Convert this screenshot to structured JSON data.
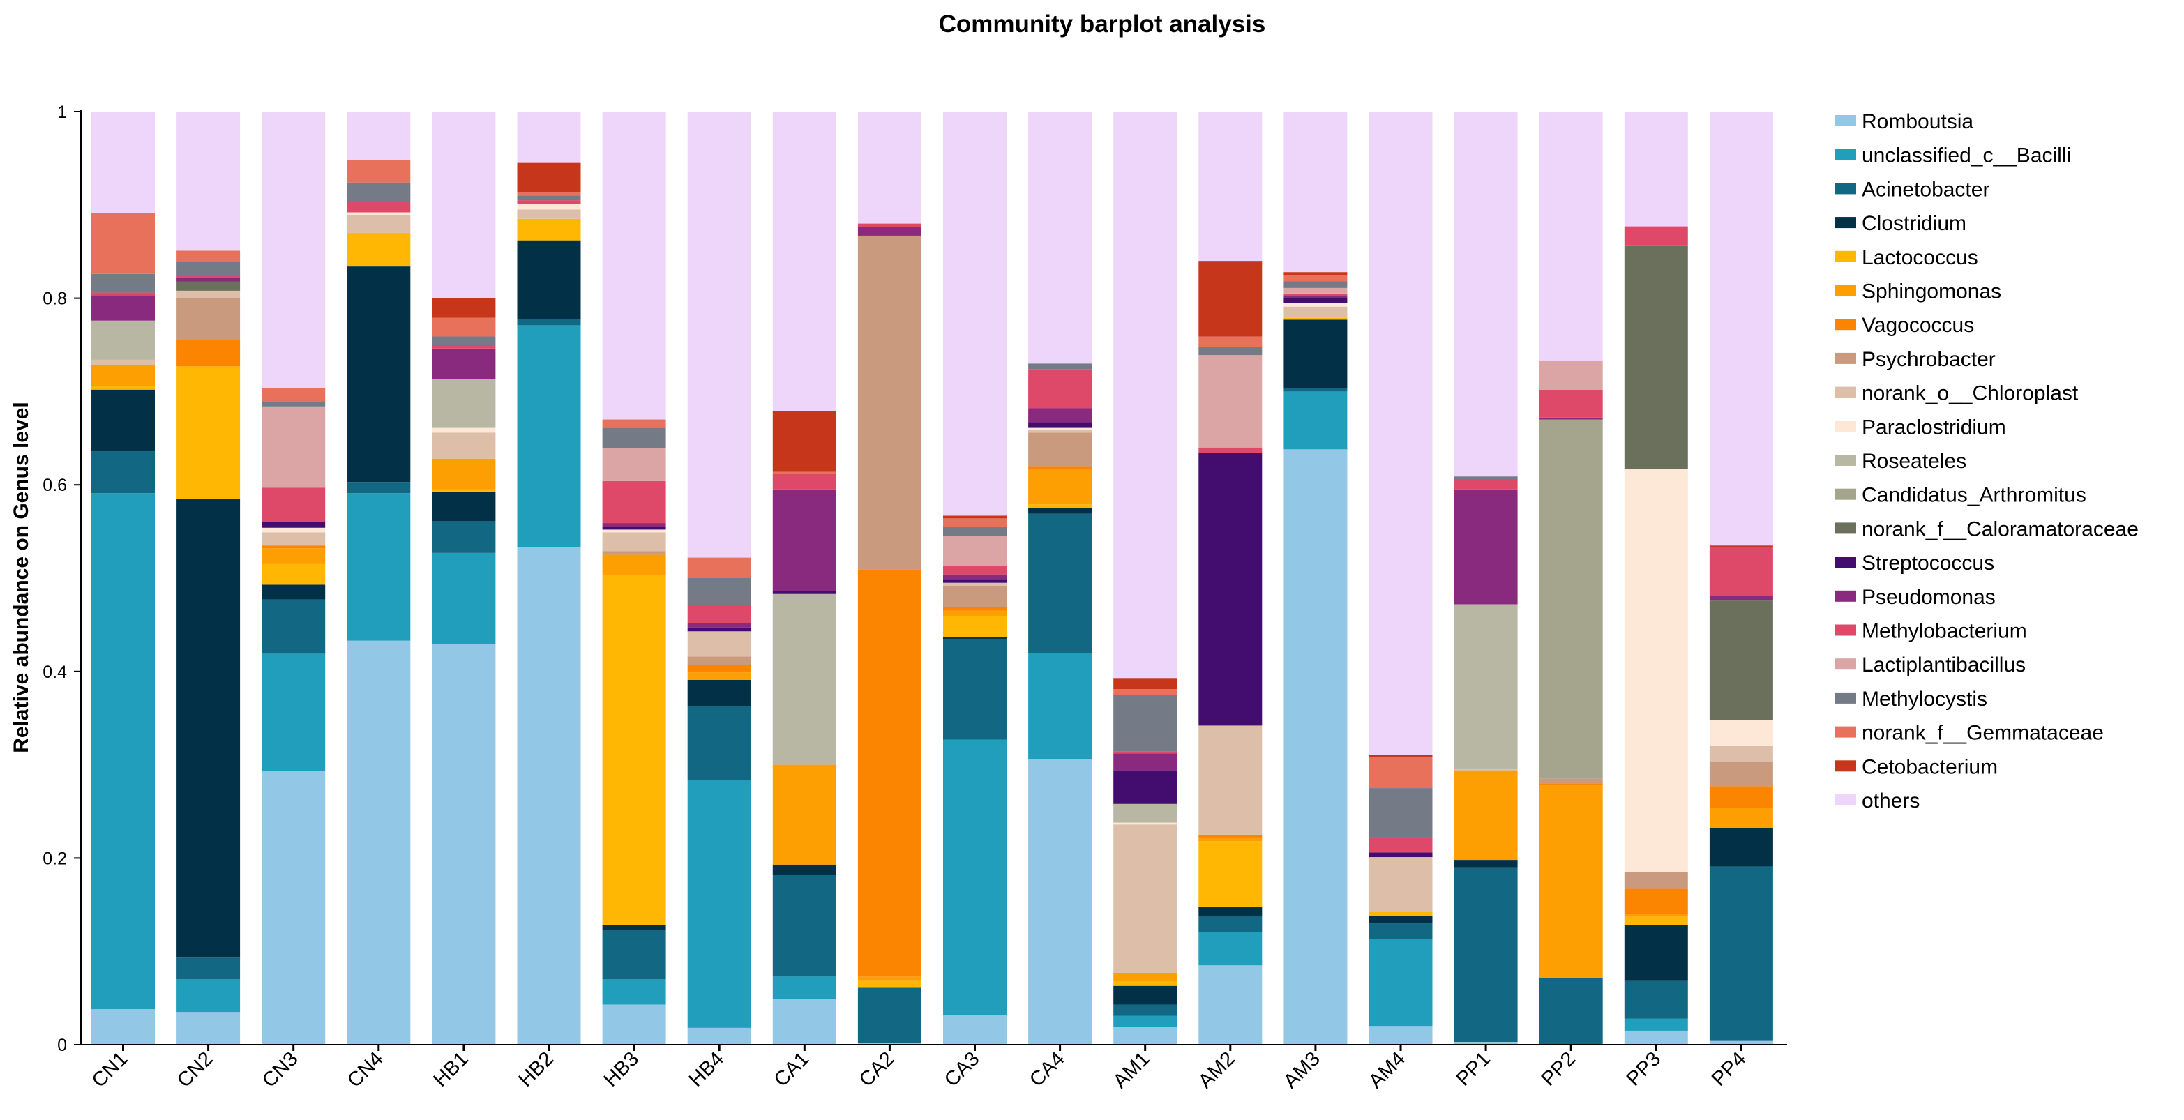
{
  "chart_data": {
    "type": "bar",
    "stacked": true,
    "title": "Community barplot analysis",
    "xlabel": "",
    "ylabel": "Relative abundance on Genus level",
    "ylim": [
      0,
      1
    ],
    "yticks": [
      "0",
      "0.2",
      "0.4",
      "0.6",
      "0.8",
      "1"
    ],
    "legend_position": "right",
    "categories": [
      "CN1",
      "CN2",
      "CN3",
      "CN4",
      "HB1",
      "HB2",
      "HB3",
      "HB4",
      "CA1",
      "CA2",
      "CA3",
      "CA4",
      "AM1",
      "AM2",
      "AM3",
      "AM4",
      "PP1",
      "PP2",
      "PP3",
      "PP4"
    ],
    "series": [
      {
        "name": "Romboutsia",
        "color": "#92C8E6"
      },
      {
        "name": "unclassified_c__Bacilli",
        "color": "#219EBC"
      },
      {
        "name": "Acinetobacter",
        "color": "#126782"
      },
      {
        "name": "Clostridium",
        "color": "#023047"
      },
      {
        "name": "Lactococcus",
        "color": "#FFB703"
      },
      {
        "name": "Sphingomonas",
        "color": "#FD9E02"
      },
      {
        "name": "Vagococcus",
        "color": "#FB8500"
      },
      {
        "name": "Psychrobacter",
        "color": "#CA9A7F"
      },
      {
        "name": "norank_o__Chloroplast",
        "color": "#DDBEA9"
      },
      {
        "name": "Paraclostridium",
        "color": "#FDE8D7"
      },
      {
        "name": "Roseateles",
        "color": "#B7B7A4"
      },
      {
        "name": "Candidatus_Arthromitus",
        "color": "#A5A58D"
      },
      {
        "name": "norank_f__Caloramatoraceae",
        "color": "#6B705C"
      },
      {
        "name": "Streptococcus",
        "color": "#420D6F"
      },
      {
        "name": "Pseudomonas",
        "color": "#8A2A7F"
      },
      {
        "name": "Methylobacterium",
        "color": "#DF4969"
      },
      {
        "name": "Lactiplantibacillus",
        "color": "#DBA5A5"
      },
      {
        "name": "Methylocystis",
        "color": "#757A87"
      },
      {
        "name": "norank_f__Gemmataceae",
        "color": "#E7715B"
      },
      {
        "name": "Cetobacterium",
        "color": "#C6361A"
      },
      {
        "name": "others",
        "color": "#EED6FB"
      }
    ],
    "values_by_category_in_series_order": {
      "CN1": [
        0.038,
        0.553,
        0.045,
        0.066,
        0.004,
        0.022,
        0,
        0,
        0.006,
        0,
        0.042,
        0,
        0,
        0,
        0.027,
        0.003,
        0,
        0.02,
        0.065,
        0,
        0.109
      ],
      "CN2": [
        0.035,
        0.035,
        0.024,
        0.491,
        0.142,
        0,
        0.028,
        0.045,
        0.008,
        0,
        0,
        0,
        0.01,
        0,
        0.004,
        0.003,
        0,
        0.014,
        0.012,
        0,
        0.149
      ],
      "CN3": [
        0.293,
        0.126,
        0.058,
        0.016,
        0.022,
        0.017,
        0.003,
        0,
        0.014,
        0.005,
        0,
        0,
        0,
        0.006,
        0,
        0.037,
        0.087,
        0.005,
        0.015,
        0,
        0.296
      ],
      "CN4": [
        0.433,
        0.158,
        0.012,
        0.231,
        0.036,
        0,
        0,
        0,
        0.019,
        0.003,
        0,
        0,
        0,
        0,
        0,
        0.011,
        0,
        0.021,
        0.024,
        0,
        0.052
      ],
      "HB1": [
        0.429,
        0.098,
        0.034,
        0.031,
        0.003,
        0.033,
        0,
        0,
        0.028,
        0.005,
        0.052,
        0,
        0,
        0,
        0.033,
        0.004,
        0,
        0.009,
        0.02,
        0.021,
        0.2
      ],
      "HB2": [
        0.533,
        0.238,
        0.007,
        0.084,
        0.023,
        0,
        0,
        0,
        0.01,
        0.006,
        0,
        0,
        0,
        0,
        0,
        0.004,
        0,
        0.005,
        0.004,
        0.031,
        0.055
      ],
      "HB3": [
        0.043,
        0.027,
        0.053,
        0.005,
        0.375,
        0.022,
        0,
        0.004,
        0.02,
        0.003,
        0,
        0,
        0,
        0.003,
        0.004,
        0.045,
        0.035,
        0.022,
        0.009,
        0,
        0.33
      ],
      "HB4": [
        0.018,
        0.266,
        0.079,
        0.028,
        0,
        0.008,
        0.008,
        0.009,
        0.027,
        0,
        0,
        0,
        0,
        0.004,
        0.005,
        0.019,
        0,
        0.029,
        0.022,
        0,
        0.478
      ],
      "CA1": [
        0.049,
        0.024,
        0.109,
        0.011,
        0,
        0.107,
        0,
        0,
        0,
        0,
        0.183,
        0,
        0,
        0.003,
        0.109,
        0.017,
        0,
        0,
        0.002,
        0.065,
        0.321
      ],
      "CA2": [
        0.002,
        0,
        0.059,
        0,
        0.008,
        0.004,
        0.436,
        0.358,
        0,
        0,
        0,
        0,
        0,
        0,
        0.009,
        0.004,
        0,
        0,
        0,
        0,
        0.12
      ],
      "CA3": [
        0.032,
        0.295,
        0.108,
        0.002,
        0.022,
        0.006,
        0.004,
        0.023,
        0.003,
        0,
        0,
        0,
        0,
        0.004,
        0.005,
        0.009,
        0.032,
        0.01,
        0.009,
        0.003,
        0.433
      ],
      "CA4": [
        0.306,
        0.114,
        0.149,
        0.006,
        0.004,
        0.037,
        0.004,
        0.036,
        0.003,
        0.002,
        0,
        0,
        0,
        0.006,
        0.015,
        0.042,
        0,
        0.006,
        0,
        0,
        0.27
      ],
      "AM1": [
        0.019,
        0.012,
        0.012,
        0.02,
        0.005,
        0.009,
        0,
        0,
        0.159,
        0.002,
        0.02,
        0,
        0,
        0.036,
        0.018,
        0.002,
        0,
        0.061,
        0.006,
        0.012,
        0.607
      ],
      "AM2": [
        0.085,
        0.036,
        0.017,
        0.01,
        0.07,
        0.004,
        0.003,
        0,
        0.117,
        0,
        0,
        0,
        0,
        0.292,
        0,
        0.006,
        0.099,
        0.009,
        0.011,
        0.081,
        0.16
      ],
      "AM3": [
        0.638,
        0.062,
        0.004,
        0.073,
        0.002,
        0,
        0,
        0,
        0.012,
        0.004,
        0,
        0,
        0,
        0.006,
        0.002,
        0.002,
        0.006,
        0.007,
        0.007,
        0.003,
        0.172
      ],
      "AM4": [
        0.02,
        0.093,
        0.017,
        0.008,
        0.004,
        0,
        0,
        0,
        0.059,
        0,
        0,
        0,
        0,
        0.005,
        0,
        0.016,
        0,
        0.053,
        0.033,
        0.003,
        0.689
      ],
      "PP1": [
        0.003,
        0,
        0.187,
        0.008,
        0,
        0.096,
        0,
        0,
        0.002,
        0,
        0.176,
        0,
        0,
        0,
        0.123,
        0.01,
        0,
        0.004,
        0,
        0,
        0.391
      ],
      "PP2": [
        0,
        0,
        0.071,
        0,
        0,
        0.207,
        0.002,
        0.005,
        0,
        0,
        0,
        0.385,
        0,
        0,
        0.002,
        0.03,
        0.031,
        0,
        0,
        0,
        0.267
      ],
      "PP3": [
        0.015,
        0.013,
        0.041,
        0.059,
        0.009,
        0.003,
        0.027,
        0.018,
        0,
        0.432,
        0,
        0,
        0.239,
        0,
        0,
        0.021,
        0,
        0,
        0,
        0,
        0.123
      ],
      "PP4": [
        0.004,
        0,
        0.187,
        0.041,
        0,
        0.022,
        0.023,
        0.026,
        0.017,
        0.028,
        0,
        0,
        0.128,
        0,
        0.005,
        0.052,
        0,
        0,
        0,
        0.002,
        0.465
      ]
    }
  }
}
